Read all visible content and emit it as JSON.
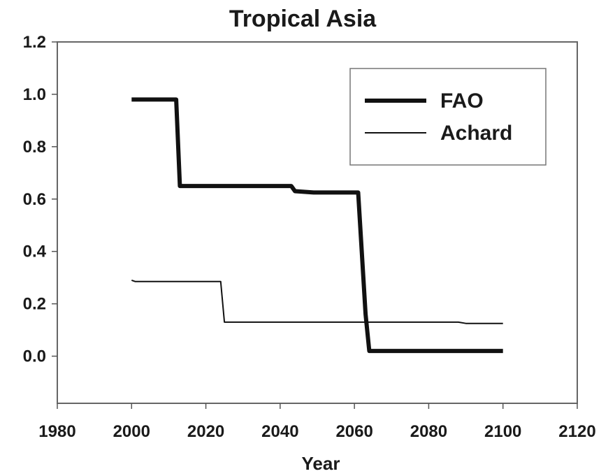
{
  "chart_data": {
    "type": "line",
    "title": "Tropical Asia",
    "xlabel": "Year",
    "ylabel": "",
    "xlim": [
      1980,
      2120
    ],
    "ylim": [
      -0.18,
      1.2
    ],
    "xticks": [
      1980,
      2000,
      2020,
      2040,
      2060,
      2080,
      2100,
      2120
    ],
    "xtick_labels": [
      "1980",
      "2000",
      "2020",
      "2040",
      "2060",
      "2080",
      "2100",
      "2120"
    ],
    "yticks": [
      0.0,
      0.2,
      0.4,
      0.6,
      0.8,
      1.0,
      1.2
    ],
    "ytick_labels": [
      "0.0",
      "0.2",
      "0.4",
      "0.6",
      "0.8",
      "1.0",
      "1.2"
    ],
    "grid": false,
    "legend_position": "top-right",
    "series": [
      {
        "name": "FAO",
        "color": "#111111",
        "line_weight": "thick",
        "x": [
          2000,
          2012,
          2013,
          2043,
          2044,
          2049,
          2061,
          2063,
          2064,
          2100
        ],
        "y": [
          0.98,
          0.98,
          0.65,
          0.65,
          0.63,
          0.625,
          0.625,
          0.16,
          0.02,
          0.02
        ]
      },
      {
        "name": "Achard",
        "color": "#111111",
        "line_weight": "thin",
        "x": [
          2000,
          2001,
          2024,
          2025,
          2088,
          2090,
          2100
        ],
        "y": [
          0.29,
          0.285,
          0.285,
          0.13,
          0.13,
          0.125,
          0.125
        ]
      }
    ]
  }
}
